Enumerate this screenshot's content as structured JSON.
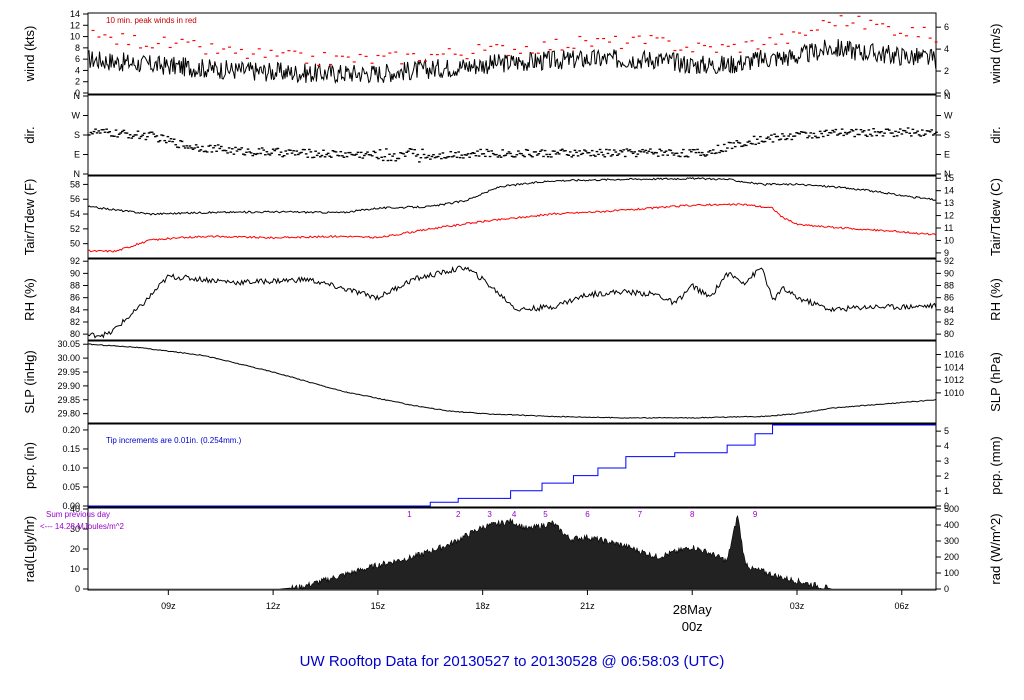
{
  "title": "UW Rooftop Data for 20130527  to  20130528 @ 06:58:03  (UTC)",
  "colors": {
    "frame": "#000000",
    "series_black": "#000000",
    "series_red": "#ff0000",
    "series_blue": "#0000ff",
    "annot_purple": "#9900cc",
    "annot_red": "#cc0000",
    "title_blue": "#0000cc"
  },
  "x_axis": {
    "ticks": [
      "09z",
      "12z",
      "15z",
      "18z",
      "21z",
      "00z",
      "03z",
      "06z"
    ],
    "date_label": "28May"
  },
  "chart_data": [
    {
      "id": "wind",
      "type": "line",
      "ylabel_left": "wind (kts)",
      "ylabel_right": "wind (m/s)",
      "yticks_left": [
        "0",
        "2",
        "4",
        "6",
        "8",
        "10",
        "12",
        "14"
      ],
      "yticks_right": [
        "0",
        "2",
        "4",
        "6"
      ],
      "ylim": [
        0,
        14
      ],
      "annotation": "10 min. peak winds in red",
      "series": [
        {
          "name": "wind",
          "color": "#000000",
          "x": [
            6.7,
            8.5,
            11,
            13,
            15,
            17,
            19,
            21,
            23,
            24,
            25,
            26,
            27,
            28,
            29.3,
            30.98
          ],
          "y": [
            6,
            5,
            4,
            3.5,
            3.5,
            4.5,
            5.5,
            6,
            6,
            5,
            5,
            6,
            6.5,
            8,
            7,
            6
          ]
        },
        {
          "name": "peak winds",
          "color": "#ff0000",
          "x": [
            6.7,
            8.5,
            11,
            13,
            15,
            17,
            19,
            21,
            23,
            24,
            25,
            26,
            27,
            28,
            29.3,
            30.98
          ],
          "y": [
            10,
            9,
            7,
            6,
            6,
            7,
            8,
            9,
            9,
            8,
            8,
            9,
            10,
            13,
            12,
            10
          ]
        }
      ]
    },
    {
      "id": "dir",
      "type": "scatter",
      "ylabel_left": "dir.",
      "ylabel_right": "dir.",
      "yticks_left": [
        "N",
        "E",
        "S",
        "W",
        "N"
      ],
      "yticks_right": [
        "N",
        "E",
        "S",
        "W",
        "N"
      ],
      "ylim": [
        0,
        360
      ],
      "series": [
        {
          "name": "dir",
          "color": "#000000",
          "x": [
            6.7,
            8.5,
            9.5,
            11,
            13,
            14.5,
            16,
            18,
            21,
            23,
            24.3,
            25.5,
            27,
            28.5,
            30.98
          ],
          "y": [
            195,
            175,
            130,
            105,
            95,
            90,
            85,
            95,
            95,
            100,
            95,
            150,
            180,
            190,
            195
          ]
        }
      ]
    },
    {
      "id": "temp",
      "type": "line",
      "ylabel_left": "Tair/Tdew (F)",
      "ylabel_right": "Tair/Tdew (C)",
      "yticks_left": [
        "50",
        "52",
        "54",
        "56",
        "58"
      ],
      "yticks_right": [
        "9",
        "10",
        "11",
        "12",
        "13",
        "14",
        "15"
      ],
      "ylim": [
        48.2,
        59.0
      ],
      "series": [
        {
          "name": "Tair",
          "color": "#000000",
          "x": [
            6.7,
            8.5,
            10,
            12,
            14,
            15,
            16.5,
            17.5,
            18.5,
            20,
            22,
            24,
            25,
            26,
            27,
            28,
            29,
            30,
            30.98
          ],
          "y": [
            55.0,
            54.0,
            54.2,
            54.3,
            54.2,
            54.8,
            55.0,
            55.8,
            57.7,
            58.5,
            58.7,
            58.8,
            58.7,
            58.0,
            58.0,
            57.7,
            57.2,
            56.5,
            55.9
          ]
        },
        {
          "name": "Tdew",
          "color": "#ff0000",
          "x": [
            6.7,
            7.5,
            8.5,
            10,
            12,
            14,
            15,
            16.5,
            18,
            20,
            22,
            24,
            25.5,
            26.3,
            26.6,
            27,
            28,
            29,
            30,
            30.98
          ],
          "y": [
            49.0,
            49.0,
            50.5,
            51.0,
            50.8,
            51.0,
            50.8,
            52.0,
            53.0,
            54.0,
            54.5,
            55.2,
            55.3,
            54.8,
            53.5,
            52.6,
            52.2,
            51.9,
            51.6,
            51.2
          ]
        }
      ]
    },
    {
      "id": "rh",
      "type": "line",
      "ylabel_left": "RH (%)",
      "ylabel_right": "RH (%)",
      "yticks_left": [
        "80",
        "82",
        "84",
        "86",
        "88",
        "90",
        "92"
      ],
      "yticks_right": [
        "80",
        "82",
        "84",
        "86",
        "88",
        "90",
        "92"
      ],
      "ylim": [
        79.2,
        92.2
      ],
      "series": [
        {
          "name": "RH",
          "color": "#000000",
          "x": [
            6.7,
            7.3,
            8.2,
            9,
            10,
            11,
            13,
            14,
            15,
            16,
            17.5,
            18,
            19,
            20,
            21,
            22,
            23,
            23.5,
            24,
            24.5,
            25,
            25.5,
            26,
            26.3,
            26.6,
            27,
            28,
            29,
            30,
            30.98
          ],
          "y": [
            79.8,
            80.0,
            84.5,
            89.5,
            89.0,
            88.5,
            89.0,
            87.5,
            86.0,
            89.0,
            91.0,
            89.0,
            84.0,
            84.5,
            86.5,
            87.0,
            86.5,
            85.0,
            88.0,
            86.0,
            90.0,
            88.5,
            91.0,
            85.5,
            87.5,
            86.0,
            84.0,
            84.5,
            84.5,
            84.7
          ]
        }
      ]
    },
    {
      "id": "slp",
      "type": "line",
      "ylabel_left": "SLP (inHg)",
      "ylabel_right": "SLP (hPa)",
      "yticks_left": [
        "29.80",
        "29.85",
        "29.90",
        "29.95",
        "30.00",
        "30.05"
      ],
      "yticks_right": [
        "1010",
        "1012",
        "1014",
        "1016"
      ],
      "ylim": [
        29.77,
        30.058
      ],
      "series": [
        {
          "name": "SLP",
          "color": "#000000",
          "x": [
            6.7,
            8,
            10,
            12,
            14,
            16,
            17,
            18,
            20,
            22,
            24,
            26,
            27,
            28,
            30,
            30.98
          ],
          "y": [
            30.05,
            30.04,
            30.01,
            29.95,
            29.88,
            29.83,
            29.81,
            29.8,
            29.79,
            29.785,
            29.785,
            29.79,
            29.8,
            29.82,
            29.84,
            29.85
          ]
        }
      ]
    },
    {
      "id": "pcp",
      "type": "line",
      "ylabel_left": "pcp. (in)",
      "ylabel_right": "pcp. (mm)",
      "yticks_left": [
        "0.00",
        "0.05",
        "0.10",
        "0.15",
        "0.20"
      ],
      "yticks_right": [
        "0",
        "1",
        "2",
        "3",
        "4",
        "5"
      ],
      "ylim": [
        0,
        0.213
      ],
      "annotation": "Tip increments are 0.01in. (0.254mm.)",
      "series": [
        {
          "name": "pcp",
          "color": "#0000ff",
          "x": [
            6.7,
            15.9,
            16.5,
            17.3,
            18.8,
            19.7,
            20.6,
            21.3,
            22.1,
            23.5,
            25.0,
            25.8,
            26.3,
            30.98
          ],
          "y": [
            0,
            0,
            0.01,
            0.02,
            0.04,
            0.06,
            0.08,
            0.1,
            0.13,
            0.14,
            0.16,
            0.19,
            0.22,
            0.22
          ]
        }
      ]
    },
    {
      "id": "rad",
      "type": "area",
      "ylabel_left": "rad(Lgly/hr)",
      "ylabel_right": "rad (W/m^2)",
      "yticks_left": [
        "0",
        "10",
        "20",
        "30",
        "40"
      ],
      "yticks_right": [
        "0",
        "100",
        "200",
        "300",
        "400",
        "500"
      ],
      "ylim": [
        0,
        40
      ],
      "annotations": {
        "sum_label": "Sum previous day",
        "sum_value": "<--- 14.28 MJoules/m^2",
        "tip_markers": [
          "1",
          "2",
          "3",
          "4",
          "5",
          "6",
          "7",
          "8",
          "9"
        ]
      },
      "series": [
        {
          "name": "rad",
          "color": "#000000",
          "x": [
            6.7,
            12.2,
            12.8,
            14,
            15,
            16,
            17,
            18,
            18.8,
            19.3,
            20,
            20.5,
            21,
            22,
            23,
            24,
            24.5,
            25,
            25.3,
            25.5,
            25.7,
            26,
            26.5,
            27,
            28,
            30.98
          ],
          "y": [
            0,
            0,
            1,
            7,
            12,
            16,
            22,
            31,
            34,
            30,
            33,
            25,
            26,
            22,
            16,
            21,
            18,
            14,
            37,
            14,
            10,
            9,
            6,
            4,
            0,
            0
          ]
        }
      ]
    }
  ]
}
